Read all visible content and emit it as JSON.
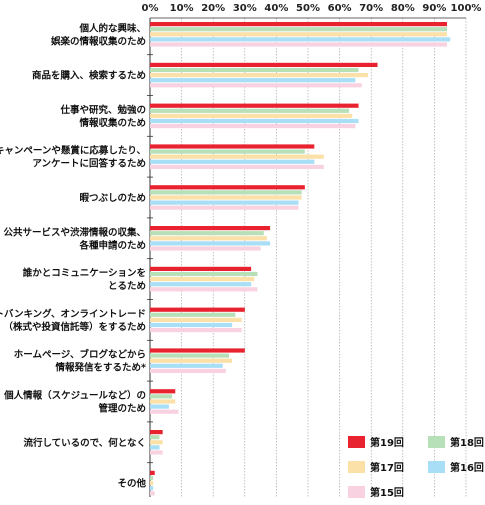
{
  "chart_data": {
    "type": "bar",
    "orientation": "horizontal",
    "xlim": [
      0,
      100
    ],
    "x_ticks": [
      "0%",
      "10%",
      "20%",
      "30%",
      "40%",
      "50%",
      "60%",
      "70%",
      "80%",
      "90%",
      "100%"
    ],
    "categories": [
      [
        "個人的な興味、",
        "娯楽の情報収集のため"
      ],
      [
        "商品を購入、検索するため"
      ],
      [
        "仕事や研究、勉強の",
        "情報収集のため"
      ],
      [
        "キャンペーンや懸賞に応募したり、",
        "アンケートに回答するため"
      ],
      [
        "暇つぶしのため"
      ],
      [
        "公共サービスや渋滞情報の収集、",
        "各種申請のため"
      ],
      [
        "誰かとコミュニケーションを",
        "とるため"
      ],
      [
        "ネットバンキング、オンライントレード",
        "（株式や投資信託等）をするため"
      ],
      [
        "ホームページ、ブログなどから",
        "情報発信をするため*"
      ],
      [
        "個人情報（スケジュールなど）の",
        "管理のため"
      ],
      [
        "流行しているので、何となく"
      ],
      [
        "その他"
      ]
    ],
    "series": [
      {
        "name": "第19回",
        "color": "#e8222e",
        "values": [
          94,
          72,
          66,
          52,
          49,
          38,
          32,
          30,
          30,
          8,
          4,
          1.5
        ]
      },
      {
        "name": "第18回",
        "color": "#b8e0b8",
        "values": [
          94,
          66,
          63,
          49,
          48,
          36,
          34,
          27,
          25,
          7,
          3,
          1
        ]
      },
      {
        "name": "第17回",
        "color": "#fbe0a8",
        "values": [
          94,
          69,
          64,
          55,
          48,
          37,
          33,
          29,
          26,
          8,
          4,
          1
        ]
      },
      {
        "name": "第16回",
        "color": "#a8def6",
        "values": [
          95,
          65,
          66,
          52,
          47,
          38,
          32,
          26,
          23,
          6,
          3,
          1
        ]
      },
      {
        "name": "第15回",
        "color": "#f9d2e2",
        "values": [
          94,
          67,
          65,
          55,
          47,
          35,
          34,
          29,
          24,
          9,
          4,
          1.5
        ]
      }
    ],
    "legend": {
      "placement": "bottom-right",
      "order": [
        "第19回",
        "第18回",
        "第17回",
        "第16回",
        "第15回"
      ]
    }
  }
}
